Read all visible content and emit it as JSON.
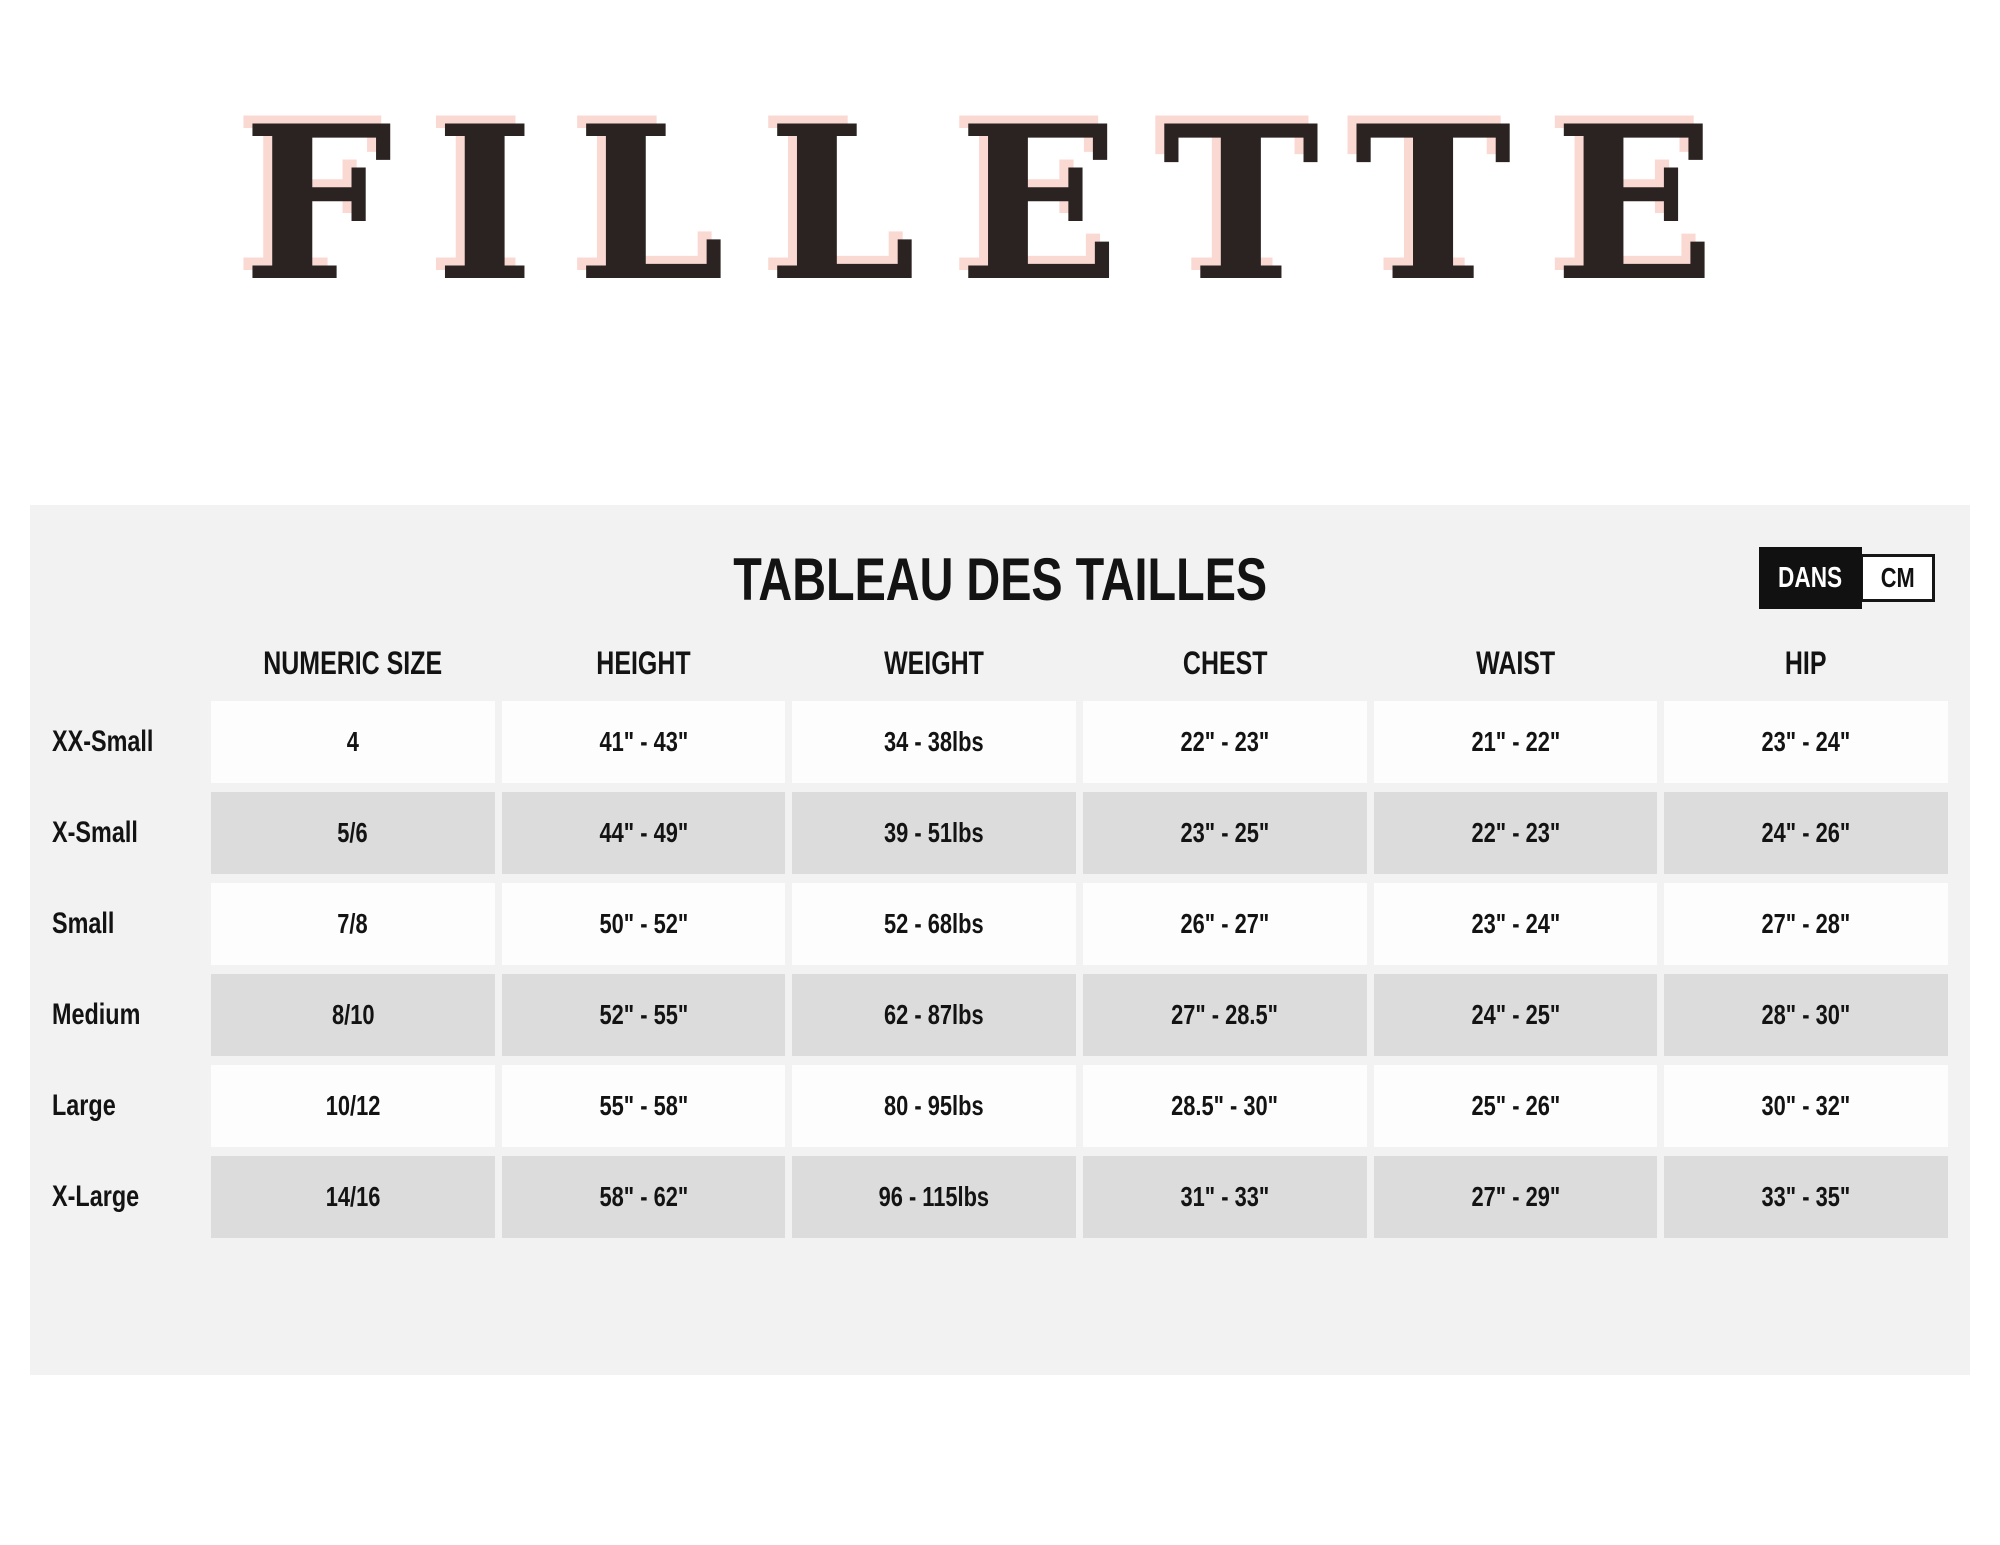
{
  "brand": {
    "title": "FILLETTE"
  },
  "size_chart": {
    "title": "TABLEAU DES TAILLES",
    "unit_toggle": [
      {
        "label": "DANS",
        "selected": true
      },
      {
        "label": "CM",
        "selected": false
      }
    ]
  },
  "chart_data": {
    "type": "table",
    "columns": [
      "NUMERIC SIZE",
      "HEIGHT",
      "WEIGHT",
      "CHEST",
      "WAIST",
      "HIP"
    ],
    "rows": [
      {
        "label": "XX-Small",
        "values": [
          "4",
          "41\" - 43\"",
          "34 - 38lbs",
          "22\" - 23\"",
          "21\" - 22\"",
          "23\" - 24\""
        ]
      },
      {
        "label": "X-Small",
        "values": [
          "5/6",
          "44\" - 49\"",
          "39 - 51lbs",
          "23\" - 25\"",
          "22\" - 23\"",
          "24\" - 26\""
        ]
      },
      {
        "label": "Small",
        "values": [
          "7/8",
          "50\" - 52\"",
          "52 - 68lbs",
          "26\" - 27\"",
          "23\" - 24\"",
          "27\" - 28\""
        ]
      },
      {
        "label": "Medium",
        "values": [
          "8/10",
          "52\" - 55\"",
          "62 - 87lbs",
          "27\" - 28.5\"",
          "24\" - 25\"",
          "28\" - 30\""
        ]
      },
      {
        "label": "Large",
        "values": [
          "10/12",
          "55\" - 58\"",
          "80 - 95lbs",
          "28.5\" - 30\"",
          "25\" - 26\"",
          "30\" - 32\""
        ]
      },
      {
        "label": "X-Large",
        "values": [
          "14/16",
          "58\" - 62\"",
          "96 - 115lbs",
          "31\" - 33\"",
          "27\" - 29\"",
          "33\" - 35\""
        ]
      }
    ]
  },
  "colors": {
    "title_text": "#2a2321",
    "title_shadow": "#fbd9d3",
    "panel_bg": "#f2f2f2",
    "row_bg": "#fdfdfd",
    "row_alt_bg": "#dcdcdc",
    "toggle_active_bg": "#111111",
    "text": "#161616"
  }
}
